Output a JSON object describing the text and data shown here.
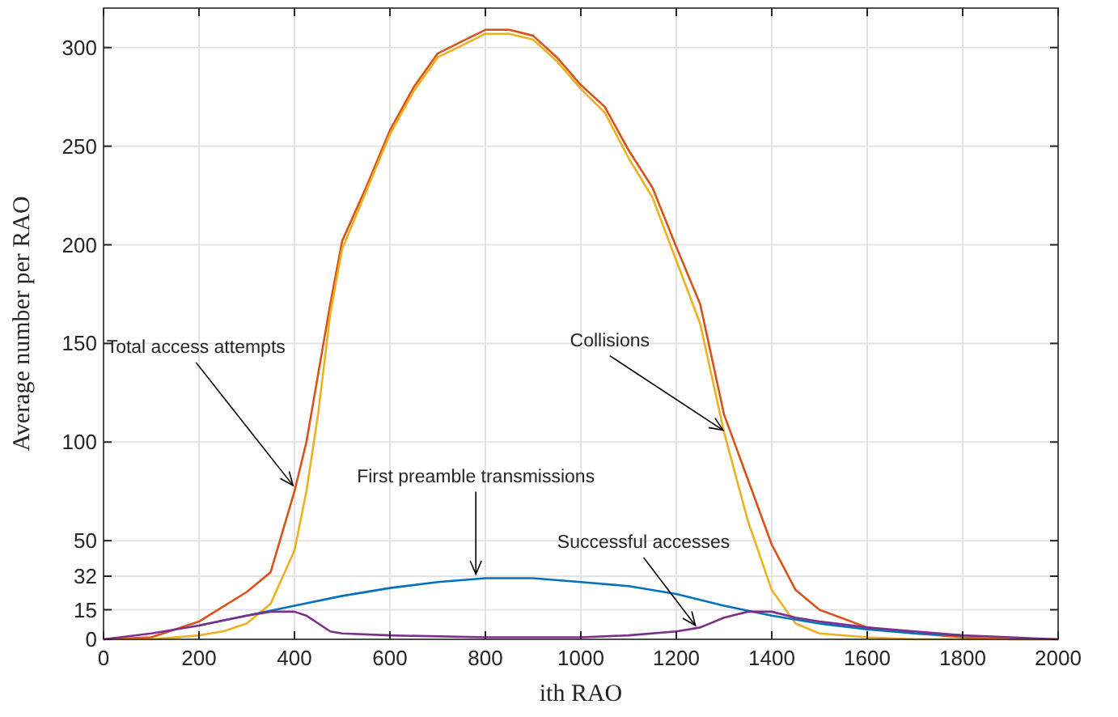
{
  "chart_data": {
    "type": "line",
    "xlabel": "ith RAO",
    "ylabel": "Average number per RAO",
    "xlim": [
      0,
      2000
    ],
    "ylim": [
      0,
      320
    ],
    "xticks": [
      0,
      200,
      400,
      600,
      800,
      1000,
      1200,
      1400,
      1600,
      1800,
      2000
    ],
    "yticks": [
      0,
      15,
      32,
      50,
      100,
      150,
      200,
      250,
      300
    ],
    "grid": true,
    "line_style": "solid",
    "series": [
      {
        "color": "#d95319",
        "x": [
          0,
          100,
          200,
          300,
          350,
          400,
          425,
          450,
          475,
          500,
          550,
          600,
          650,
          700,
          750,
          800,
          850,
          900,
          950,
          1000,
          1050,
          1100,
          1150,
          1200,
          1250,
          1300,
          1350,
          1400,
          1450,
          1500,
          1600,
          1700,
          1800,
          1900,
          2000
        ],
        "values": [
          0,
          1,
          9,
          24,
          34,
          75,
          100,
          135,
          170,
          202,
          229,
          258,
          280,
          297,
          303,
          309,
          309,
          306,
          295,
          281,
          270,
          248,
          229,
          199,
          170,
          114,
          81,
          48,
          25,
          15,
          6,
          3,
          1,
          0,
          0
        ]
      },
      {
        "color": "#edb120",
        "x": [
          0,
          100,
          200,
          250,
          300,
          350,
          400,
          425,
          450,
          475,
          500,
          550,
          600,
          650,
          700,
          750,
          800,
          850,
          900,
          950,
          1000,
          1050,
          1100,
          1150,
          1200,
          1250,
          1300,
          1350,
          1400,
          1450,
          1500,
          1600,
          1700,
          2000
        ],
        "values": [
          0,
          0,
          2,
          4,
          8,
          18,
          45,
          75,
          115,
          165,
          198,
          227,
          256,
          278,
          295,
          301,
          307,
          307,
          304,
          293,
          279,
          267,
          244,
          224,
          192,
          160,
          105,
          60,
          25,
          8,
          3,
          1,
          0,
          0
        ]
      },
      {
        "color": "#0072bd",
        "x": [
          200,
          300,
          400,
          500,
          600,
          700,
          800,
          900,
          1000,
          1100,
          1200,
          1300,
          1400,
          1500,
          1600,
          1700,
          1800
        ],
        "values": [
          7,
          12,
          17,
          22,
          26,
          29,
          31,
          31,
          29,
          27,
          23,
          17,
          12,
          8,
          5,
          3,
          2
        ]
      },
      {
        "color": "#7e2f8e",
        "x": [
          0,
          100,
          200,
          300,
          350,
          400,
          425,
          450,
          475,
          500,
          600,
          800,
          1000,
          1100,
          1200,
          1250,
          1300,
          1350,
          1400,
          1450,
          1500,
          1600,
          1700,
          1800,
          1900,
          2000
        ],
        "values": [
          0,
          3,
          7,
          12,
          14,
          14,
          12,
          8,
          4,
          3,
          2,
          1,
          1,
          2,
          4,
          6,
          11,
          14,
          14,
          11,
          9,
          6,
          4,
          2,
          1,
          0
        ]
      }
    ],
    "annotations": [
      {
        "text": "Total access attempts",
        "x": 397,
        "y": 78
      },
      {
        "text": "Collisions",
        "x": 1298,
        "y": 106
      },
      {
        "text": "First preamble transmissions",
        "x": 780,
        "y": 33
      },
      {
        "text": "Successful accesses",
        "x": 1240,
        "y": 7
      }
    ]
  }
}
